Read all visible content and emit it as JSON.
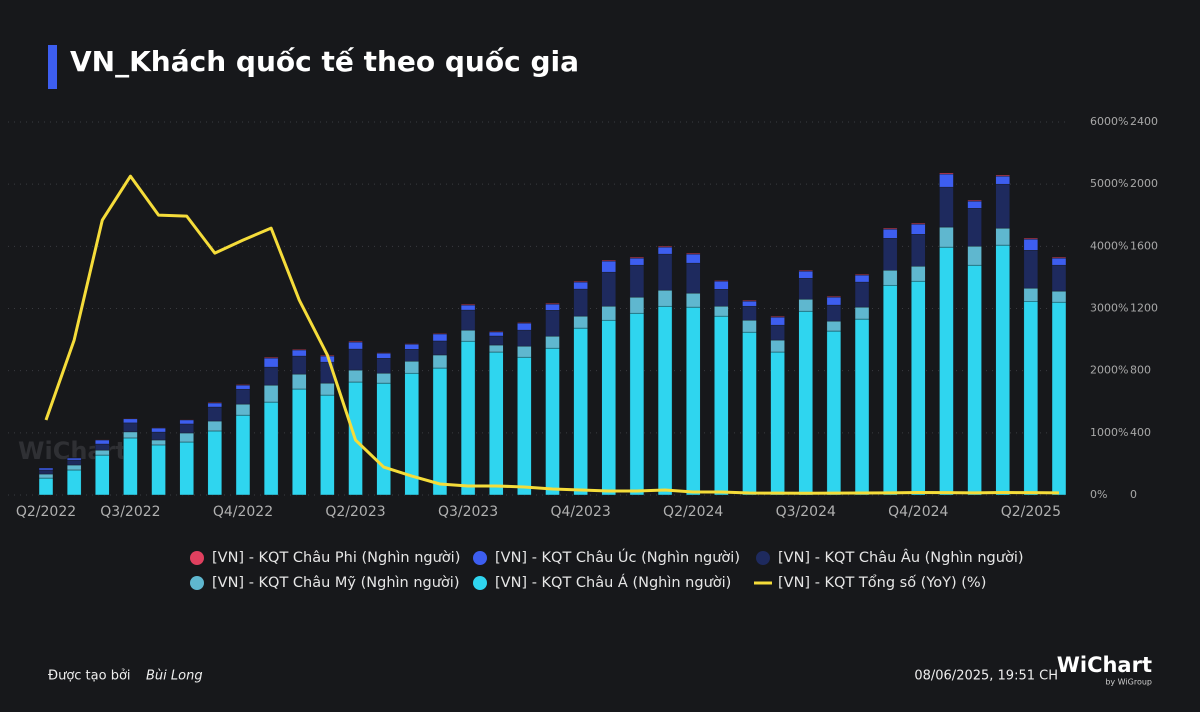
{
  "title": "VN_Khách quốc tế theo quốc gia",
  "watermark": "WiChart",
  "chart_data": {
    "type": "bar-line",
    "categories": [
      "Q2/2022",
      null,
      null,
      "Q3/2022",
      null,
      null,
      null,
      "Q4/2022",
      null,
      null,
      null,
      "Q2/2023",
      null,
      null,
      null,
      "Q3/2023",
      null,
      null,
      null,
      "Q4/2023",
      null,
      null,
      null,
      "Q2/2024",
      null,
      null,
      null,
      "Q3/2024",
      null,
      null,
      null,
      "Q4/2024",
      null,
      null,
      null,
      "Q2/2025",
      null
    ],
    "series": [
      {
        "name": "[VN] - KQT Châu Phi (Nghìn người)",
        "color": "#e0405f",
        "axis": "y",
        "values": [
          2,
          2,
          3,
          3,
          3,
          3,
          4,
          4,
          5,
          5,
          5,
          5,
          4,
          4,
          4,
          5,
          4,
          4,
          5,
          5,
          6,
          6,
          6,
          6,
          5,
          5,
          5,
          5,
          5,
          5,
          6,
          6,
          7,
          6,
          7,
          6,
          6
        ]
      },
      {
        "name": "[VN] - KQT Châu Úc (Nghìn người)",
        "color": "#3d5ef0",
        "axis": "y",
        "values": [
          13,
          13,
          26,
          26,
          26,
          26,
          26,
          26,
          58,
          39,
          39,
          45,
          32,
          32,
          45,
          32,
          26,
          45,
          39,
          45,
          71,
          45,
          45,
          58,
          51,
          32,
          51,
          45,
          51,
          45,
          58,
          64,
          84,
          45,
          51,
          71,
          45
        ]
      },
      {
        "name": "[VN] - KQT Châu Âu (Nghìn người)",
        "color": "#1e2a5e",
        "axis": "y",
        "values": [
          26,
          32,
          39,
          58,
          51,
          58,
          90,
          96,
          116,
          116,
          135,
          135,
          96,
          77,
          90,
          129,
          58,
          103,
          167,
          174,
          219,
          206,
          232,
          193,
          109,
          90,
          96,
          135,
          103,
          161,
          206,
          206,
          257,
          244,
          283,
          244,
          167
        ]
      },
      {
        "name": "[VN] - KQT Châu Mỹ (Nghìn người)",
        "color": "#5fb7cf",
        "axis": "y",
        "values": [
          26,
          32,
          32,
          39,
          32,
          58,
          64,
          71,
          109,
          96,
          77,
          77,
          64,
          77,
          84,
          71,
          45,
          71,
          77,
          77,
          90,
          103,
          103,
          90,
          64,
          77,
          77,
          77,
          64,
          77,
          96,
          96,
          129,
          122,
          109,
          84,
          71
        ]
      },
      {
        "name": "[VN] - KQT Châu Á (Nghìn người)",
        "color": "#2fd5ef",
        "axis": "y",
        "values": [
          109,
          161,
          257,
          367,
          322,
          341,
          412,
          514,
          598,
          682,
          643,
          727,
          720,
          784,
          817,
          990,
          920,
          887,
          945,
          1074,
          1125,
          1170,
          1215,
          1209,
          1151,
          1048,
          920,
          1183,
          1055,
          1132,
          1350,
          1376,
          1595,
          1479,
          1608,
          1247,
          1241
        ]
      },
      {
        "name": "[VN] - KQT Tổng số (YoY) (%)",
        "color": "#f5dc3a",
        "axis": "y2",
        "type": "line",
        "values": [
          1206,
          2492,
          4421,
          5129,
          4502,
          4486,
          3891,
          4100,
          4293,
          3135,
          2251,
          884,
          450,
          305,
          177,
          145,
          145,
          129,
          96,
          80,
          64,
          64,
          80,
          48,
          48,
          32,
          30,
          28,
          30,
          32,
          35,
          40,
          38,
          35,
          40,
          38,
          35
        ]
      }
    ],
    "ylim": [
      0,
      2400
    ],
    "yticks": [
      0,
      400,
      800,
      1200,
      1600,
      2000,
      2400
    ],
    "y2lim": [
      0,
      6000
    ],
    "y2ticks": [
      {
        "value": 0,
        "label": "0%"
      },
      {
        "value": 1000,
        "label": "1000%"
      },
      {
        "value": 2000,
        "label": "2000%"
      },
      {
        "value": 3000,
        "label": "3000%"
      },
      {
        "value": 4000,
        "label": "4000%"
      },
      {
        "value": 5000,
        "label": "5000%"
      },
      {
        "value": 6000,
        "label": "6000%"
      }
    ],
    "grid": true
  },
  "footer": {
    "created_label": "Được tạo bởi",
    "author": "Bùi Long",
    "timestamp": "08/06/2025, 19:51 CH",
    "logo": "WiChart",
    "logo_sub": "by WiGroup"
  }
}
